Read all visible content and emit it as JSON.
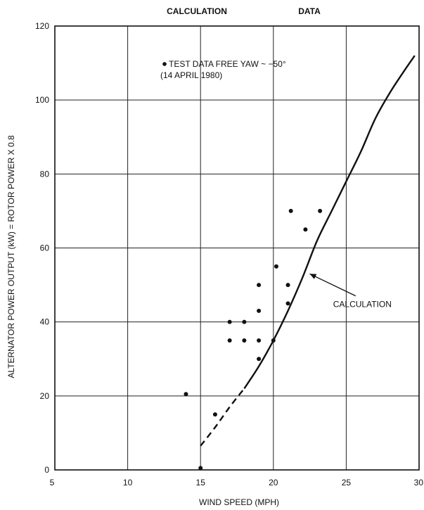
{
  "header": {
    "left": "CALCULATION",
    "right": "DATA"
  },
  "chart_data": {
    "type": "scatter",
    "title": "",
    "xlabel": "WIND SPEED (MPH)",
    "ylabel": "ALTERNATOR POWER OUTPUT (kW) = ROTOR POWER X 0.8",
    "xlim": [
      5,
      30
    ],
    "ylim": [
      0,
      120
    ],
    "x_ticks": [
      "5",
      "10",
      "15",
      "20",
      "25",
      "30"
    ],
    "y_ticks": [
      "0",
      "20",
      "40",
      "60",
      "80",
      "100",
      "120"
    ],
    "grid": true,
    "legend": {
      "marker": "•",
      "line1": "TEST DATA FREE YAW ~ −50°",
      "line2": "(14 APRIL 1980)",
      "position": "top-left"
    },
    "series": [
      {
        "name": "TEST DATA FREE YAW ~ −50°",
        "type": "scatter",
        "points": [
          [
            14.0,
            20.5
          ],
          [
            15.0,
            0.5
          ],
          [
            16.0,
            15.0
          ],
          [
            17.0,
            40.0
          ],
          [
            17.0,
            35.0
          ],
          [
            18.0,
            40.0
          ],
          [
            18.0,
            35.0
          ],
          [
            19.0,
            50.0
          ],
          [
            19.0,
            43.0
          ],
          [
            19.0,
            35.0
          ],
          [
            19.0,
            30.0
          ],
          [
            20.0,
            35.0
          ],
          [
            20.2,
            55.0
          ],
          [
            21.0,
            50.0
          ],
          [
            21.0,
            45.0
          ],
          [
            21.2,
            70.0
          ],
          [
            22.2,
            65.0
          ],
          [
            23.2,
            70.0
          ]
        ]
      },
      {
        "name": "CALCULATION",
        "type": "line",
        "dashed_until_x": 18.0,
        "points": [
          [
            15.0,
            6.5
          ],
          [
            16.0,
            11.5
          ],
          [
            17.0,
            17.0
          ],
          [
            18.0,
            22.0
          ],
          [
            19.0,
            28.0
          ],
          [
            20.0,
            35.0
          ],
          [
            21.0,
            43.0
          ],
          [
            22.0,
            52.0
          ],
          [
            23.0,
            62.0
          ],
          [
            24.0,
            70.0
          ],
          [
            25.0,
            78.0
          ],
          [
            26.0,
            86.0
          ],
          [
            27.0,
            95.0
          ],
          [
            28.0,
            102.0
          ],
          [
            29.0,
            108.0
          ],
          [
            29.7,
            112.0
          ]
        ]
      }
    ],
    "annotations": [
      {
        "text": "CALCULATION",
        "x": 24.1,
        "y": 44,
        "arrow_to": [
          22.3,
          53
        ]
      }
    ]
  }
}
